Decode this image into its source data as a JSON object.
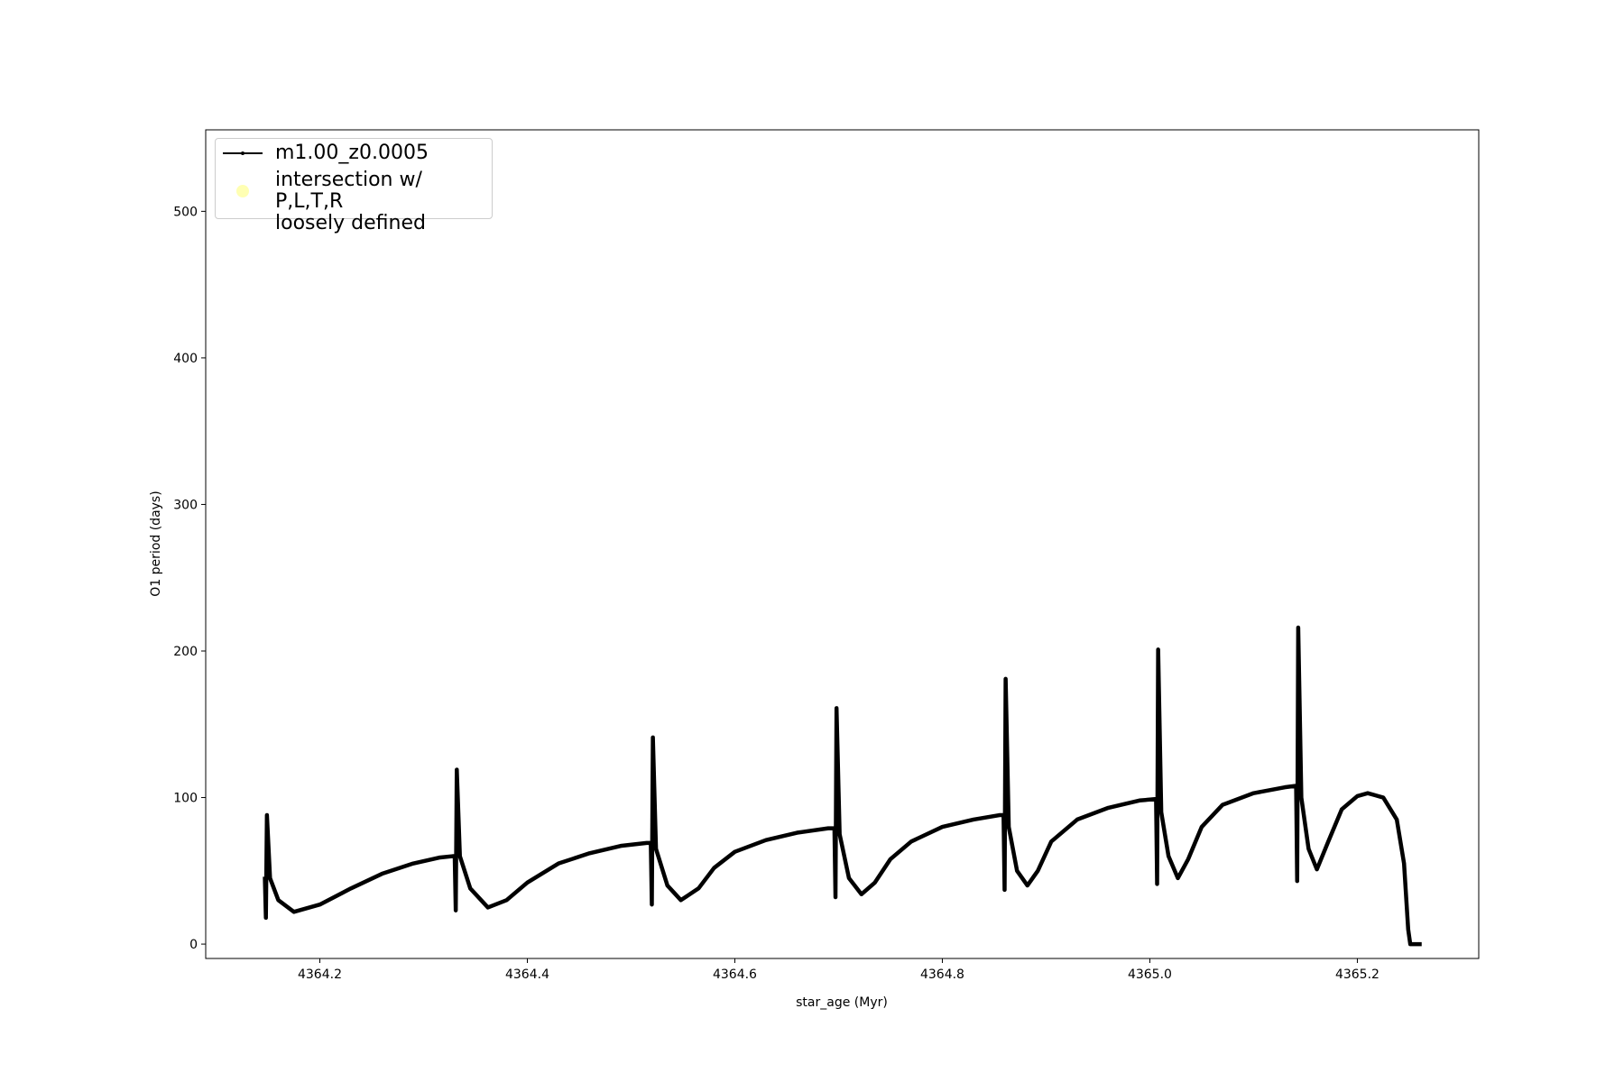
{
  "chart_data": {
    "type": "line",
    "x_label": "star_age (Myr)",
    "y_label": "O1 period (days)",
    "x": [
      4364.147,
      4364.148,
      4364.149,
      4364.152,
      4364.16,
      4364.175,
      4364.2,
      4364.23,
      4364.26,
      4364.29,
      4364.315,
      4364.328,
      4364.33,
      4364.331,
      4364.332,
      4364.335,
      4364.345,
      4364.362,
      4364.38,
      4364.4,
      4364.43,
      4364.46,
      4364.49,
      4364.515,
      4364.519,
      4364.52,
      4364.521,
      4364.524,
      4364.535,
      4364.548,
      4364.565,
      4364.58,
      4364.6,
      4364.63,
      4364.66,
      4364.69,
      4364.696,
      4364.697,
      4364.698,
      4364.701,
      4364.71,
      4364.722,
      4364.735,
      4364.75,
      4364.77,
      4364.8,
      4364.83,
      4364.855,
      4364.859,
      4364.86,
      4364.861,
      4364.864,
      4364.872,
      4364.882,
      4364.892,
      4364.905,
      4364.93,
      4364.96,
      4364.99,
      4365.006,
      4365.007,
      4365.008,
      4365.011,
      4365.018,
      4365.027,
      4365.037,
      4365.05,
      4365.07,
      4365.1,
      4365.13,
      4365.141,
      4365.142,
      4365.143,
      4365.146,
      4365.153,
      4365.161,
      4365.172,
      4365.185,
      4365.2,
      4365.21,
      4365.225,
      4365.238,
      4365.245,
      4365.249,
      4365.251,
      4365.262
    ],
    "series": [
      {
        "name": "m1.00_z0.0005",
        "color": "#000000",
        "marker": "line",
        "values": [
          46,
          18,
          88,
          45,
          30,
          22,
          27,
          38,
          48,
          55,
          59,
          60,
          60,
          23,
          119,
          60,
          38,
          25,
          30,
          42,
          55,
          62,
          67,
          69,
          69,
          27,
          141,
          65,
          40,
          30,
          38,
          52,
          63,
          71,
          76,
          79,
          79,
          32,
          161,
          75,
          45,
          34,
          42,
          58,
          70,
          80,
          85,
          88,
          88,
          37,
          181,
          80,
          50,
          40,
          50,
          70,
          85,
          93,
          98,
          99,
          41,
          201,
          90,
          60,
          45,
          58,
          80,
          95,
          103,
          107,
          108,
          43,
          216,
          100,
          65,
          51,
          70,
          92,
          101,
          103,
          100,
          85,
          55,
          10,
          0,
          0
        ]
      },
      {
        "name": "intersection w/ P,L,T,R\nloosely defined",
        "color": "#ffffb3",
        "marker": "circle"
      }
    ],
    "xlim": [
      4364.09,
      4365.317
    ],
    "ylim": [
      -9.8,
      555.6
    ],
    "xticks": [
      4364.2,
      4364.4,
      4364.6,
      4364.8,
      {
        "value": 4365,
        "label": "4365.0"
      },
      4365.2
    ],
    "yticks": [
      0,
      100,
      200,
      300,
      400,
      500
    ],
    "legend": "upper left"
  }
}
